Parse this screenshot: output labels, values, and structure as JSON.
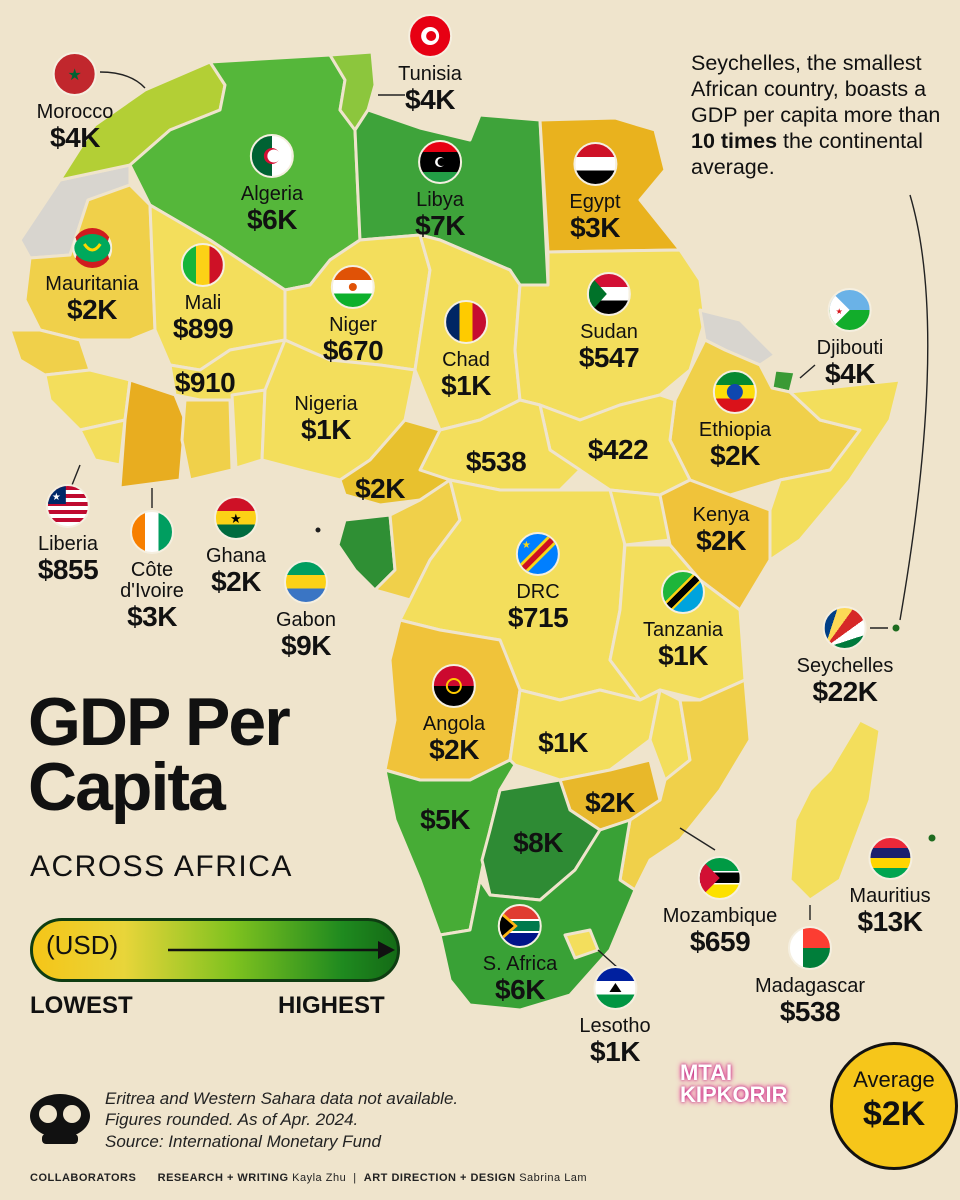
{
  "title": {
    "line1": "GDP Per",
    "line2": "Capita",
    "subtitle": "ACROSS AFRICA"
  },
  "legend": {
    "unit": "(USD)",
    "low": "LOWEST",
    "high": "HIGHEST",
    "colors": [
      "#f5c518",
      "#e8d53a",
      "#7fc21f",
      "#1f8a1f",
      "#146b16"
    ]
  },
  "note": {
    "pre": "Seychelles, the smallest African country, boasts a GDP per capita more than ",
    "bold": "10 times",
    "post": " the continental average."
  },
  "average": {
    "label": "Average",
    "value": "$2K"
  },
  "footnote": {
    "line1": "Eritrea and Western Sahara data not available.",
    "line2": "Figures rounded. As of Apr. 2024.",
    "line3": "Source: International Monetary Fund"
  },
  "credits": {
    "collab": "COLLABORATORS",
    "research_label": "RESEARCH + WRITING",
    "research_name": "Kayla Zhu",
    "design_label": "ART DIRECTION + DESIGN",
    "design_name": "Sabrina Lam"
  },
  "watermark": {
    "line1": "MTAI",
    "line2": "KIPKORIR"
  },
  "labels": {
    "morocco": {
      "name": "Morocco",
      "value": "$4K"
    },
    "tunisia": {
      "name": "Tunisia",
      "value": "$4K"
    },
    "algeria": {
      "name": "Algeria",
      "value": "$6K"
    },
    "libya": {
      "name": "Libya",
      "value": "$7K"
    },
    "egypt": {
      "name": "Egypt",
      "value": "$3K"
    },
    "mauritania": {
      "name": "Mauritania",
      "value": "$2K"
    },
    "mali": {
      "name": "Mali",
      "value": "$899"
    },
    "niger": {
      "name": "Niger",
      "value": "$670"
    },
    "chad": {
      "name": "Chad",
      "value": "$1K"
    },
    "sudan": {
      "name": "Sudan",
      "value": "$547"
    },
    "djibouti": {
      "name": "Djibouti",
      "value": "$4K"
    },
    "burkina": {
      "value": "$910"
    },
    "nigeria": {
      "name": "Nigeria",
      "value": "$1K"
    },
    "ethiopia": {
      "name": "Ethiopia",
      "value": "$2K"
    },
    "car": {
      "value": "$538"
    },
    "southsudan": {
      "value": "$422"
    },
    "cameroon": {
      "value": "$2K"
    },
    "liberia": {
      "name": "Liberia",
      "value": "$855"
    },
    "ivorycoast": {
      "name": "Côte d'Ivoire",
      "value": "$3K"
    },
    "ghana": {
      "name": "Ghana",
      "value": "$2K"
    },
    "gabon": {
      "name": "Gabon",
      "value": "$9K"
    },
    "drc": {
      "name": "DRC",
      "value": "$715"
    },
    "kenya": {
      "name": "Kenya",
      "value": "$2K"
    },
    "tanzania": {
      "name": "Tanzania",
      "value": "$1K"
    },
    "seychelles": {
      "name": "Seychelles",
      "value": "$22K"
    },
    "angola": {
      "name": "Angola",
      "value": "$2K"
    },
    "zambia": {
      "value": "$1K"
    },
    "zimbabwe": {
      "value": "$2K"
    },
    "namibia": {
      "value": "$5K"
    },
    "botswana": {
      "value": "$8K"
    },
    "southafrica": {
      "name": "S. Africa",
      "value": "$6K"
    },
    "mozambique": {
      "name": "Mozambique",
      "value": "$659"
    },
    "madagascar": {
      "name": "Madagascar",
      "value": "$538"
    },
    "mauritius": {
      "name": "Mauritius",
      "value": "$13K"
    },
    "lesotho": {
      "name": "Lesotho",
      "value": "$1K"
    }
  }
}
